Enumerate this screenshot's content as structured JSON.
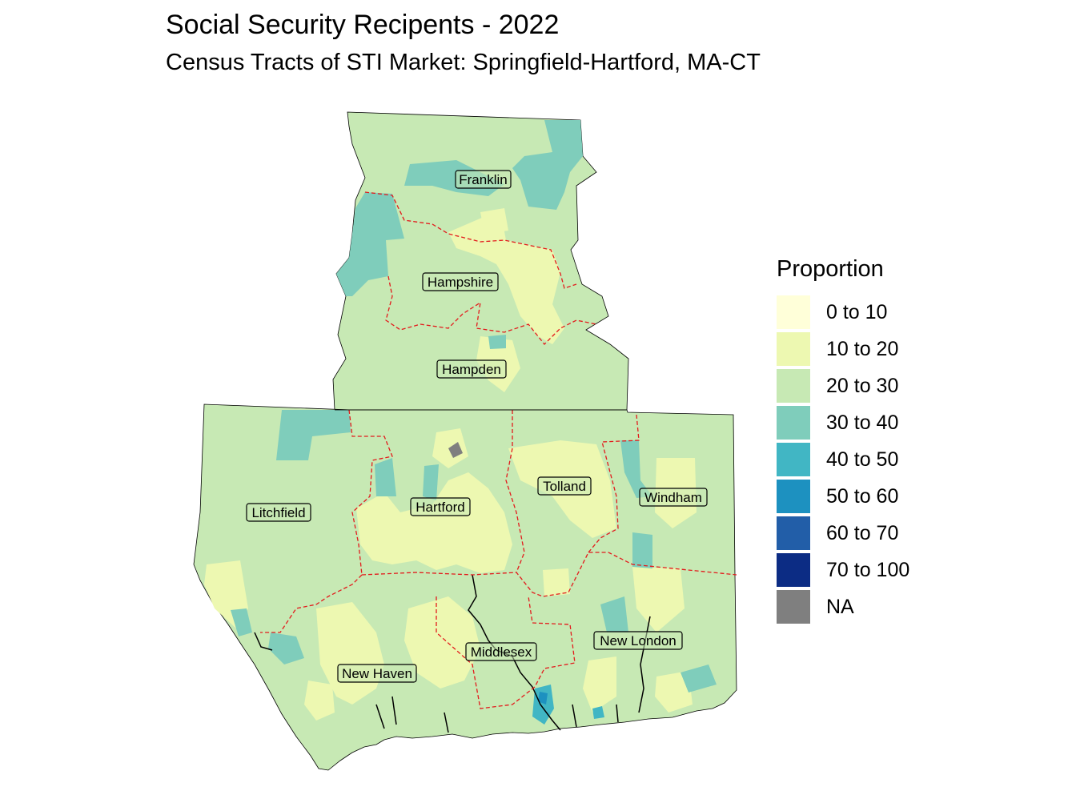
{
  "title": "Social Security Recipents - 2022",
  "subtitle": "Census Tracts of STI Market: Springfield-Hartford, MA-CT",
  "legend": {
    "title": "Proportion",
    "items": [
      {
        "label": "0 to 10",
        "color": "#ffffd9"
      },
      {
        "label": "10 to 20",
        "color": "#edf8b1"
      },
      {
        "label": "20 to 30",
        "color": "#c7e9b4"
      },
      {
        "label": "30 to 40",
        "color": "#7fcdbb"
      },
      {
        "label": "40 to 50",
        "color": "#41b6c4"
      },
      {
        "label": "50 to 60",
        "color": "#1d91c0"
      },
      {
        "label": "60 to 70",
        "color": "#225ea8"
      },
      {
        "label": "70 to 100",
        "color": "#0c2c84"
      },
      {
        "label": "NA",
        "color": "#7f7f7f"
      }
    ]
  },
  "counties": [
    {
      "name": "Franklin"
    },
    {
      "name": "Hampshire"
    },
    {
      "name": "Hampden"
    },
    {
      "name": "Litchfield"
    },
    {
      "name": "Hartford"
    },
    {
      "name": "Tolland"
    },
    {
      "name": "Windham"
    },
    {
      "name": "Middlesex"
    },
    {
      "name": "New London"
    },
    {
      "name": "New Haven"
    }
  ],
  "colors": {
    "county_border": "#e31a1c",
    "outline": "#000000",
    "water": "#ffffff"
  }
}
